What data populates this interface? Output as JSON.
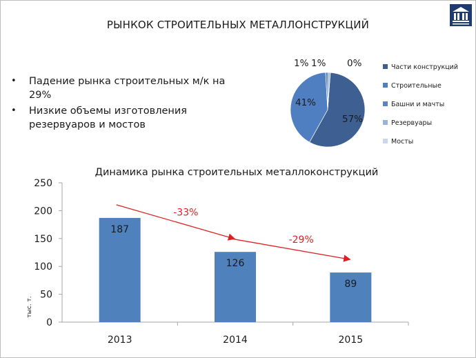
{
  "header": {
    "title": "РЫНКОК СТРОИТЕЛЬНЫХ МЕТАЛЛОНСТРУКЦИЙ",
    "logo_icon": "building-logo-icon"
  },
  "bullets": [
    "Падение рынка строительных м/к на 29%",
    "Низкие объемы изготовления резервуаров и мостов"
  ],
  "chart_data": [
    {
      "type": "pie",
      "labels": [
        "Части конструкций",
        "Строительные",
        "Башни и мачты",
        "Резервуары",
        "Мосты"
      ],
      "values": [
        57,
        41,
        1,
        1,
        0
      ],
      "data_labels": [
        "57%",
        "41%",
        "1%",
        "1%",
        "0%"
      ],
      "colors": [
        "#3d5f92",
        "#4f7fc0",
        "#5b84c4",
        "#95b3de",
        "#c8d7ee"
      ],
      "legend": "right"
    },
    {
      "type": "bar",
      "title": "Динамика рынка строительных металлоконструкций",
      "categories": [
        "2013",
        "2014",
        "2015"
      ],
      "values": [
        187,
        126,
        89
      ],
      "ylabel": "тыс. т.",
      "ylim": [
        0,
        250
      ],
      "yticks": [
        "0",
        "50",
        "100",
        "150",
        "200",
        "250"
      ],
      "bar_color": "#4f81bd",
      "annotations": [
        "-33%",
        "-29%"
      ],
      "annotation_color": "#e02020"
    }
  ]
}
